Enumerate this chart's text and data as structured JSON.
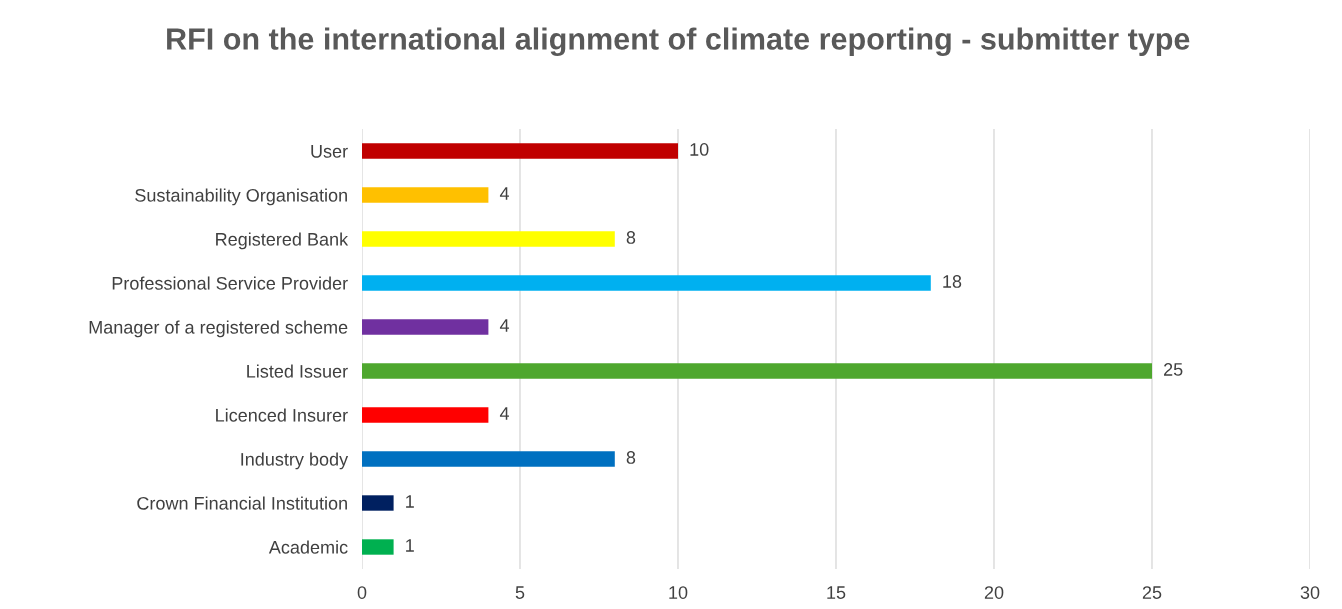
{
  "chart_data": {
    "type": "bar",
    "orientation": "horizontal",
    "title": "RFI on the international alignment of climate reporting - submitter type",
    "categories": [
      "User",
      "Sustainability Organisation",
      "Registered Bank",
      "Professional Service Provider",
      "Manager of a registered scheme",
      "Listed Issuer",
      "Licenced Insurer",
      "Industry body",
      "Crown Financial Institution",
      "Academic"
    ],
    "values": [
      10,
      4,
      8,
      18,
      4,
      25,
      4,
      8,
      1,
      1
    ],
    "colors": [
      "#c00000",
      "#ffc000",
      "#ffff00",
      "#00b0f0",
      "#7030a0",
      "#4ea72e",
      "#ff0000",
      "#0070c0",
      "#002060",
      "#00b050"
    ],
    "xlim": [
      0,
      30
    ],
    "xticks": [
      0,
      5,
      10,
      15,
      20,
      25,
      30
    ],
    "grid": "x",
    "data_labels": true
  }
}
